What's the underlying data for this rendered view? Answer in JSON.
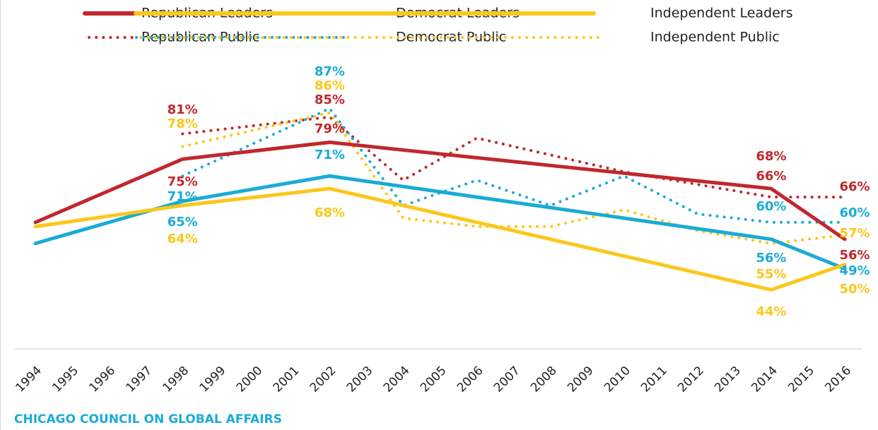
{
  "chart_data": {
    "type": "line",
    "xlim": [
      1994,
      2016
    ],
    "xticks": [
      1994,
      1995,
      1996,
      1997,
      1998,
      1999,
      2000,
      2001,
      2002,
      2003,
      2004,
      2005,
      2006,
      2007,
      2008,
      2009,
      2010,
      2011,
      2012,
      2013,
      2014,
      2015,
      2016
    ],
    "ylim": [
      30,
      95
    ],
    "source": "CHICAGO COUNCIL ON GLOBAL AFFAIRS",
    "series": [
      {
        "name": "Republican Leaders",
        "color": "#c0282d",
        "style": "solid",
        "x": [
          1994,
          1998,
          2002,
          2014,
          2016
        ],
        "values": [
          60,
          75,
          79,
          68,
          56
        ],
        "value_labels": [
          null,
          "75%",
          "79%",
          "68%",
          "56%"
        ]
      },
      {
        "name": "Democrat Leaders",
        "color": "#1aabd6",
        "style": "solid",
        "x": [
          1994,
          1998,
          2002,
          2014,
          2016
        ],
        "values": [
          55,
          65,
          71,
          56,
          49
        ],
        "value_labels": [
          null,
          "65%",
          "71%",
          "56%",
          "49%"
        ]
      },
      {
        "name": "Independent Leaders",
        "color": "#fcc71a",
        "style": "solid",
        "x": [
          1994,
          1998,
          2002,
          2014,
          2016
        ],
        "values": [
          59,
          64,
          68,
          44,
          50
        ],
        "value_labels": [
          null,
          "64%",
          "68%",
          "44%",
          "50%"
        ]
      },
      {
        "name": "Republican Public",
        "color": "#c0282d",
        "style": "dotted",
        "x": [
          1998,
          2002,
          2004,
          2006,
          2008,
          2010,
          2012,
          2014,
          2016
        ],
        "values": [
          81,
          85,
          70,
          80,
          76,
          72,
          69,
          66,
          66
        ],
        "value_labels": [
          "81%",
          "85%",
          null,
          null,
          null,
          null,
          null,
          "66%",
          "66%"
        ]
      },
      {
        "name": "Democrat Public",
        "color": "#1aabd6",
        "style": "dotted",
        "x": [
          1998,
          2002,
          2004,
          2006,
          2008,
          2010,
          2012,
          2014,
          2016
        ],
        "values": [
          71,
          87,
          64,
          70,
          64,
          71,
          62,
          60,
          60
        ],
        "value_labels": [
          "71%",
          "87%",
          null,
          null,
          null,
          null,
          null,
          "60%",
          "60%"
        ]
      },
      {
        "name": "Independent Public",
        "color": "#fcc71a",
        "style": "dotted",
        "x": [
          1998,
          2002,
          2004,
          2006,
          2008,
          2010,
          2012,
          2014,
          2016
        ],
        "values": [
          78,
          86,
          61,
          59,
          59,
          63,
          58,
          55,
          57
        ],
        "value_labels": [
          "78%",
          "86%",
          null,
          null,
          null,
          null,
          null,
          "55%",
          "57%"
        ]
      }
    ]
  }
}
